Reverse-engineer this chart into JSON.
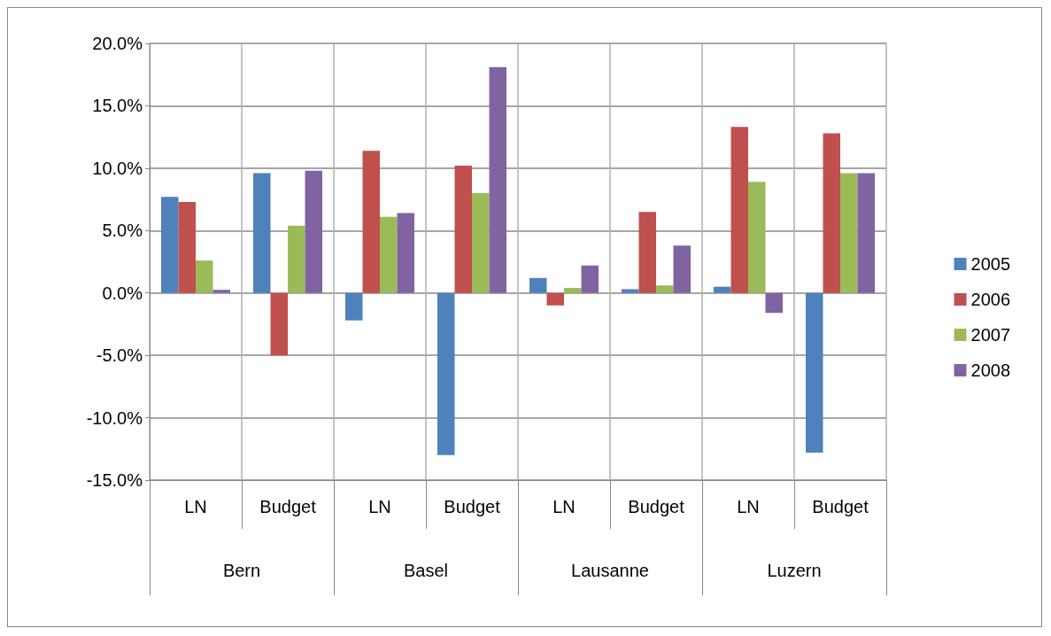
{
  "chart_data": {
    "type": "bar",
    "categories": [
      "LN",
      "Budget",
      "LN",
      "Budget",
      "LN",
      "Budget",
      "LN",
      "Budget"
    ],
    "annotations": [
      "Bern",
      "Basel",
      "Lausanne",
      "Luzern"
    ],
    "series": [
      {
        "name": "2005",
        "color": "#4f81bd",
        "values": [
          7.7,
          9.6,
          -2.2,
          -13.0,
          1.2,
          0.3,
          0.5,
          -12.8
        ]
      },
      {
        "name": "2006",
        "color": "#c0504d",
        "values": [
          7.3,
          -5.0,
          11.4,
          10.2,
          -1.0,
          6.5,
          13.3,
          12.8
        ]
      },
      {
        "name": "2007",
        "color": "#9bbb59",
        "values": [
          2.6,
          5.4,
          6.1,
          8.0,
          0.4,
          0.6,
          8.9,
          9.6
        ]
      },
      {
        "name": "2008",
        "color": "#8064a2",
        "values": [
          0.25,
          9.8,
          6.4,
          18.1,
          2.2,
          3.8,
          -1.6,
          9.6
        ]
      }
    ],
    "ylim": [
      -15,
      20
    ],
    "yticks": [
      {
        "value": -15,
        "label": "-15.0%"
      },
      {
        "value": -10,
        "label": "-10.0%"
      },
      {
        "value": -5,
        "label": "-5.0%"
      },
      {
        "value": 0,
        "label": "0.0%"
      },
      {
        "value": 5,
        "label": "5.0%"
      },
      {
        "value": 10,
        "label": "10.0%"
      },
      {
        "value": 15,
        "label": "15.0%"
      },
      {
        "value": 20,
        "label": "20.0%"
      }
    ],
    "grid": true,
    "legend": "right"
  }
}
